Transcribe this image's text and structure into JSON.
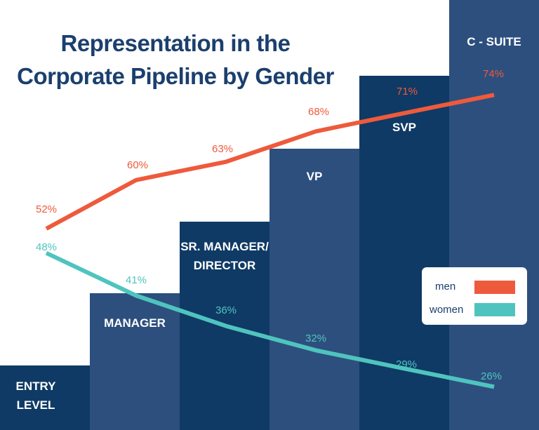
{
  "chart_data": {
    "type": "line",
    "title": [
      "Representation in the",
      "Corporate Pipeline by Gender"
    ],
    "categories": [
      [
        "ENTRY",
        "LEVEL"
      ],
      [
        "MANAGER"
      ],
      [
        "SR. MANAGER/",
        "DIRECTOR"
      ],
      [
        "VP"
      ],
      [
        "SVP"
      ],
      [
        "C - SUITE"
      ]
    ],
    "series": [
      {
        "name": "men",
        "color": "#ee5a3c",
        "values": [
          52,
          60,
          63,
          68,
          71,
          74
        ],
        "labels": [
          "52%",
          "60%",
          "63%",
          "68%",
          "71%",
          "74%"
        ]
      },
      {
        "name": "women",
        "color": "#4fc4bf",
        "values": [
          48,
          41,
          36,
          32,
          29,
          26
        ],
        "labels": [
          "48%",
          "41%",
          "36%",
          "32%",
          "29%",
          "26%"
        ]
      }
    ],
    "background": "staircase of bars, one per pipeline level, rising left to right",
    "bar_colors": [
      "#0f3a65",
      "#2d4f7e"
    ],
    "legend": {
      "placement": "right",
      "entries": [
        "men",
        "women"
      ]
    },
    "ylim": [
      20,
      80
    ]
  }
}
